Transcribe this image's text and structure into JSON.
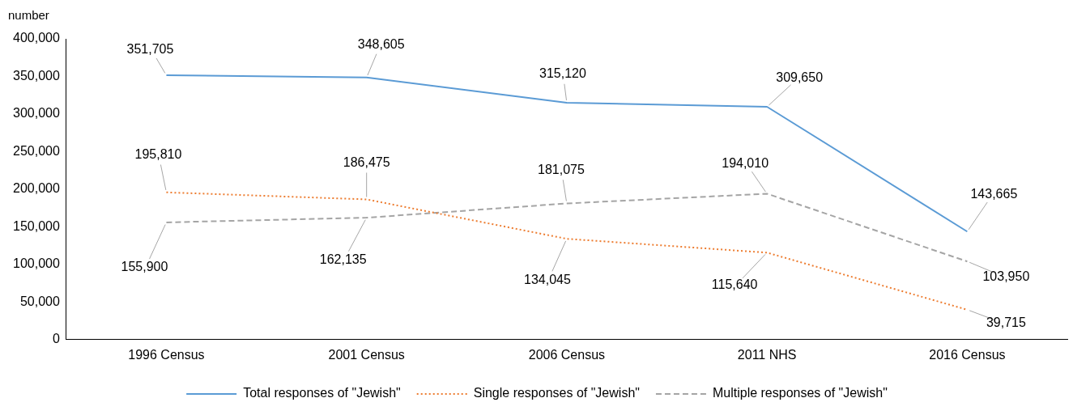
{
  "chart_data": {
    "type": "line",
    "ylabel": "number",
    "categories": [
      "1996 Census",
      "2001 Census",
      "2006 Census",
      "2011 NHS",
      "2016 Census"
    ],
    "series": [
      {
        "name": "Total responses of \"Jewish\"",
        "color": "#5b9bd5",
        "line_style": "solid",
        "values": [
          351705,
          348605,
          315120,
          309650,
          143665
        ],
        "value_labels": [
          "351,705",
          "348,605",
          "315,120",
          "309,650",
          "143,665"
        ]
      },
      {
        "name": "Single responses of \"Jewish\"",
        "color": "#ed7d31",
        "line_style": "dotted",
        "values": [
          195810,
          186475,
          134045,
          115640,
          39715
        ],
        "value_labels": [
          "195,810",
          "186,475",
          "134,045",
          "115,640",
          "39,715"
        ]
      },
      {
        "name": "Multiple responses of \"Jewish\"",
        "color": "#a5a5a5",
        "line_style": "dashed",
        "values": [
          155900,
          162135,
          181075,
          194010,
          103950
        ],
        "value_labels": [
          "155,900",
          "162,135",
          "181,075",
          "194,010",
          "103,950"
        ]
      }
    ],
    "ylim": [
      0,
      400000
    ],
    "yticks": [
      0,
      {
        "value": 50000,
        "label": "50,000"
      },
      {
        "value": 100000,
        "label": "100,000"
      },
      {
        "value": 150000,
        "label": "150,000"
      },
      {
        "value": 200000,
        "label": "200,000"
      },
      {
        "value": 250000,
        "label": "250,000"
      },
      {
        "value": 300000,
        "label": "300,000"
      },
      {
        "value": 350000,
        "label": "350,000"
      },
      {
        "value": 400000,
        "label": "400,000"
      }
    ],
    "grid": false,
    "legend": "bottom",
    "marker": "none"
  }
}
